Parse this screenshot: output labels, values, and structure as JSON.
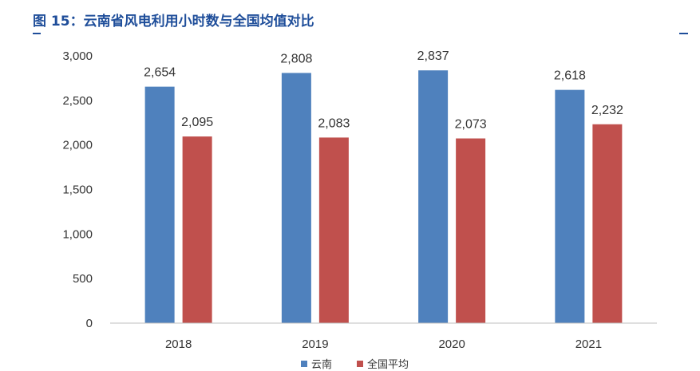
{
  "header": {
    "title": "图 15：云南省风电利用小时数与全国均值对比"
  },
  "chart_data": {
    "type": "bar",
    "categories": [
      "2018",
      "2019",
      "2020",
      "2021"
    ],
    "series": [
      {
        "name": "云南",
        "values": [
          2654,
          2808,
          2837,
          2618
        ],
        "labels": [
          "2,654",
          "2,808",
          "2,837",
          "2,618"
        ],
        "color": "#4f81bd"
      },
      {
        "name": "全国平均",
        "values": [
          2095,
          2083,
          2073,
          2232
        ],
        "labels": [
          "2,095",
          "2,083",
          "2,073",
          "2,232"
        ],
        "color": "#c0504d"
      }
    ],
    "ylim": [
      0,
      3000
    ],
    "yticks": [
      0,
      500,
      1000,
      1500,
      2000,
      2500,
      3000
    ],
    "ytick_labels": [
      "0",
      "500",
      "1,000",
      "1,500",
      "2,000",
      "2,500",
      "3,000"
    ],
    "xlabel": "",
    "ylabel": "",
    "grid": false,
    "legend_position": "bottom"
  }
}
